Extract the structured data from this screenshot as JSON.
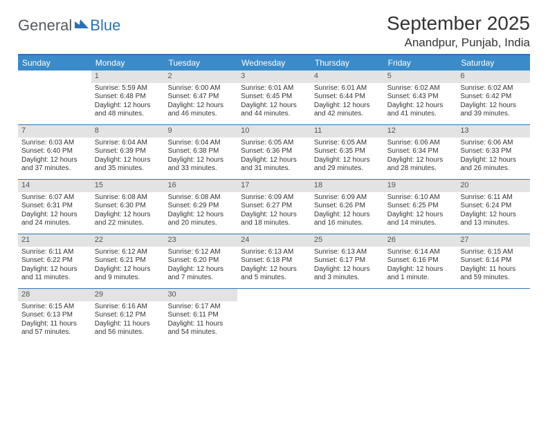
{
  "logo": {
    "text1": "General",
    "text2": "Blue"
  },
  "title": "September 2025",
  "subtitle": "Anandpur, Punjab, India",
  "colors": {
    "header_bar": "#3b8bc8",
    "rule": "#2a72b5",
    "daynum_bg": "#e3e3e3",
    "text": "#333333",
    "logo_gray": "#555a60",
    "logo_blue": "#2a72b5",
    "background": "#ffffff"
  },
  "typography": {
    "title_fontsize": 28,
    "subtitle_fontsize": 17,
    "dow_fontsize": 12,
    "daynum_fontsize": 11,
    "body_fontsize": 10
  },
  "days_of_week": [
    "Sunday",
    "Monday",
    "Tuesday",
    "Wednesday",
    "Thursday",
    "Friday",
    "Saturday"
  ],
  "weeks": [
    [
      {
        "n": "",
        "sunrise": "",
        "sunset": "",
        "daylight1": "",
        "daylight2": ""
      },
      {
        "n": "1",
        "sunrise": "Sunrise: 5:59 AM",
        "sunset": "Sunset: 6:48 PM",
        "daylight1": "Daylight: 12 hours",
        "daylight2": "and 48 minutes."
      },
      {
        "n": "2",
        "sunrise": "Sunrise: 6:00 AM",
        "sunset": "Sunset: 6:47 PM",
        "daylight1": "Daylight: 12 hours",
        "daylight2": "and 46 minutes."
      },
      {
        "n": "3",
        "sunrise": "Sunrise: 6:01 AM",
        "sunset": "Sunset: 6:45 PM",
        "daylight1": "Daylight: 12 hours",
        "daylight2": "and 44 minutes."
      },
      {
        "n": "4",
        "sunrise": "Sunrise: 6:01 AM",
        "sunset": "Sunset: 6:44 PM",
        "daylight1": "Daylight: 12 hours",
        "daylight2": "and 42 minutes."
      },
      {
        "n": "5",
        "sunrise": "Sunrise: 6:02 AM",
        "sunset": "Sunset: 6:43 PM",
        "daylight1": "Daylight: 12 hours",
        "daylight2": "and 41 minutes."
      },
      {
        "n": "6",
        "sunrise": "Sunrise: 6:02 AM",
        "sunset": "Sunset: 6:42 PM",
        "daylight1": "Daylight: 12 hours",
        "daylight2": "and 39 minutes."
      }
    ],
    [
      {
        "n": "7",
        "sunrise": "Sunrise: 6:03 AM",
        "sunset": "Sunset: 6:40 PM",
        "daylight1": "Daylight: 12 hours",
        "daylight2": "and 37 minutes."
      },
      {
        "n": "8",
        "sunrise": "Sunrise: 6:04 AM",
        "sunset": "Sunset: 6:39 PM",
        "daylight1": "Daylight: 12 hours",
        "daylight2": "and 35 minutes."
      },
      {
        "n": "9",
        "sunrise": "Sunrise: 6:04 AM",
        "sunset": "Sunset: 6:38 PM",
        "daylight1": "Daylight: 12 hours",
        "daylight2": "and 33 minutes."
      },
      {
        "n": "10",
        "sunrise": "Sunrise: 6:05 AM",
        "sunset": "Sunset: 6:36 PM",
        "daylight1": "Daylight: 12 hours",
        "daylight2": "and 31 minutes."
      },
      {
        "n": "11",
        "sunrise": "Sunrise: 6:05 AM",
        "sunset": "Sunset: 6:35 PM",
        "daylight1": "Daylight: 12 hours",
        "daylight2": "and 29 minutes."
      },
      {
        "n": "12",
        "sunrise": "Sunrise: 6:06 AM",
        "sunset": "Sunset: 6:34 PM",
        "daylight1": "Daylight: 12 hours",
        "daylight2": "and 28 minutes."
      },
      {
        "n": "13",
        "sunrise": "Sunrise: 6:06 AM",
        "sunset": "Sunset: 6:33 PM",
        "daylight1": "Daylight: 12 hours",
        "daylight2": "and 26 minutes."
      }
    ],
    [
      {
        "n": "14",
        "sunrise": "Sunrise: 6:07 AM",
        "sunset": "Sunset: 6:31 PM",
        "daylight1": "Daylight: 12 hours",
        "daylight2": "and 24 minutes."
      },
      {
        "n": "15",
        "sunrise": "Sunrise: 6:08 AM",
        "sunset": "Sunset: 6:30 PM",
        "daylight1": "Daylight: 12 hours",
        "daylight2": "and 22 minutes."
      },
      {
        "n": "16",
        "sunrise": "Sunrise: 6:08 AM",
        "sunset": "Sunset: 6:29 PM",
        "daylight1": "Daylight: 12 hours",
        "daylight2": "and 20 minutes."
      },
      {
        "n": "17",
        "sunrise": "Sunrise: 6:09 AM",
        "sunset": "Sunset: 6:27 PM",
        "daylight1": "Daylight: 12 hours",
        "daylight2": "and 18 minutes."
      },
      {
        "n": "18",
        "sunrise": "Sunrise: 6:09 AM",
        "sunset": "Sunset: 6:26 PM",
        "daylight1": "Daylight: 12 hours",
        "daylight2": "and 16 minutes."
      },
      {
        "n": "19",
        "sunrise": "Sunrise: 6:10 AM",
        "sunset": "Sunset: 6:25 PM",
        "daylight1": "Daylight: 12 hours",
        "daylight2": "and 14 minutes."
      },
      {
        "n": "20",
        "sunrise": "Sunrise: 6:11 AM",
        "sunset": "Sunset: 6:24 PM",
        "daylight1": "Daylight: 12 hours",
        "daylight2": "and 13 minutes."
      }
    ],
    [
      {
        "n": "21",
        "sunrise": "Sunrise: 6:11 AM",
        "sunset": "Sunset: 6:22 PM",
        "daylight1": "Daylight: 12 hours",
        "daylight2": "and 11 minutes."
      },
      {
        "n": "22",
        "sunrise": "Sunrise: 6:12 AM",
        "sunset": "Sunset: 6:21 PM",
        "daylight1": "Daylight: 12 hours",
        "daylight2": "and 9 minutes."
      },
      {
        "n": "23",
        "sunrise": "Sunrise: 6:12 AM",
        "sunset": "Sunset: 6:20 PM",
        "daylight1": "Daylight: 12 hours",
        "daylight2": "and 7 minutes."
      },
      {
        "n": "24",
        "sunrise": "Sunrise: 6:13 AM",
        "sunset": "Sunset: 6:18 PM",
        "daylight1": "Daylight: 12 hours",
        "daylight2": "and 5 minutes."
      },
      {
        "n": "25",
        "sunrise": "Sunrise: 6:13 AM",
        "sunset": "Sunset: 6:17 PM",
        "daylight1": "Daylight: 12 hours",
        "daylight2": "and 3 minutes."
      },
      {
        "n": "26",
        "sunrise": "Sunrise: 6:14 AM",
        "sunset": "Sunset: 6:16 PM",
        "daylight1": "Daylight: 12 hours",
        "daylight2": "and 1 minute."
      },
      {
        "n": "27",
        "sunrise": "Sunrise: 6:15 AM",
        "sunset": "Sunset: 6:14 PM",
        "daylight1": "Daylight: 11 hours",
        "daylight2": "and 59 minutes."
      }
    ],
    [
      {
        "n": "28",
        "sunrise": "Sunrise: 6:15 AM",
        "sunset": "Sunset: 6:13 PM",
        "daylight1": "Daylight: 11 hours",
        "daylight2": "and 57 minutes."
      },
      {
        "n": "29",
        "sunrise": "Sunrise: 6:16 AM",
        "sunset": "Sunset: 6:12 PM",
        "daylight1": "Daylight: 11 hours",
        "daylight2": "and 56 minutes."
      },
      {
        "n": "30",
        "sunrise": "Sunrise: 6:17 AM",
        "sunset": "Sunset: 6:11 PM",
        "daylight1": "Daylight: 11 hours",
        "daylight2": "and 54 minutes."
      },
      {
        "n": "",
        "sunrise": "",
        "sunset": "",
        "daylight1": "",
        "daylight2": ""
      },
      {
        "n": "",
        "sunrise": "",
        "sunset": "",
        "daylight1": "",
        "daylight2": ""
      },
      {
        "n": "",
        "sunrise": "",
        "sunset": "",
        "daylight1": "",
        "daylight2": ""
      },
      {
        "n": "",
        "sunrise": "",
        "sunset": "",
        "daylight1": "",
        "daylight2": ""
      }
    ]
  ]
}
